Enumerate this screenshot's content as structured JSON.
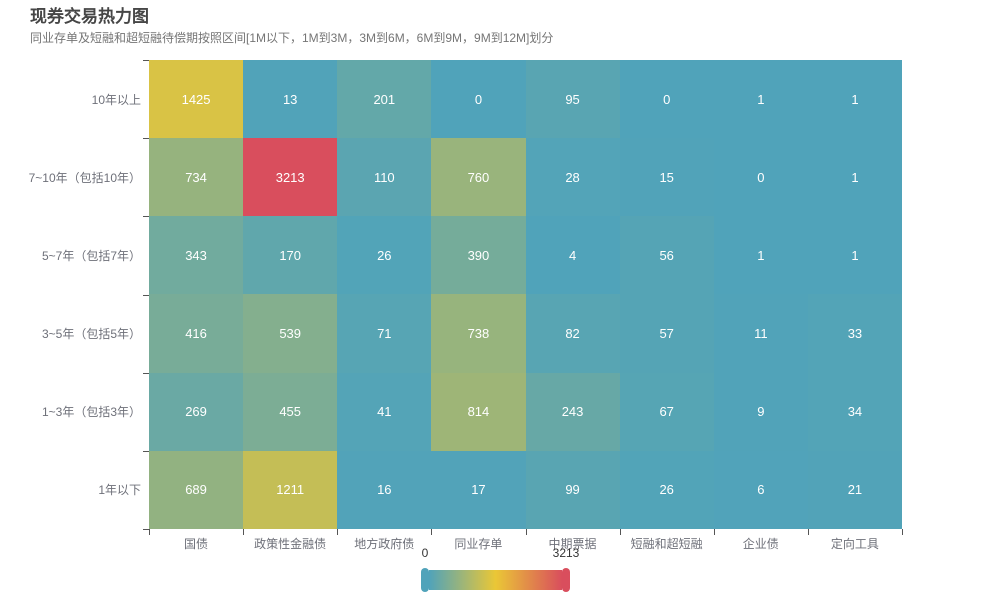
{
  "title": "现券交易热力图",
  "subtitle": "同业存单及短融和超短融待偿期按照区间[1M以下，1M到3M，3M到6M，6M到9M，9M到12M]划分",
  "chart_data": {
    "type": "heatmap",
    "x_categories": [
      "国债",
      "政策性金融债",
      "地方政府债",
      "同业存单",
      "中期票据",
      "短融和超短融",
      "企业债",
      "定向工具"
    ],
    "y_categories": [
      "10年以上",
      "7~10年（包括10年）",
      "5~7年（包括7年）",
      "3~5年（包括5年）",
      "1~3年（包括3年）",
      "1年以下"
    ],
    "rows": [
      [
        1425,
        13,
        201,
        0,
        95,
        0,
        1,
        1
      ],
      [
        734,
        3213,
        110,
        760,
        28,
        15,
        0,
        1
      ],
      [
        343,
        170,
        26,
        390,
        4,
        56,
        1,
        1
      ],
      [
        416,
        539,
        71,
        738,
        82,
        57,
        11,
        33
      ],
      [
        269,
        455,
        41,
        814,
        243,
        67,
        9,
        34
      ],
      [
        689,
        1211,
        16,
        17,
        99,
        26,
        6,
        21
      ]
    ],
    "visual_map": {
      "min": 0,
      "max": 3213,
      "min_label": "0",
      "max_label": "3213",
      "gradient": [
        "#50a3ba",
        "#eac736",
        "#d94e5d"
      ]
    },
    "layout": {
      "grid_on": false,
      "legend": "none",
      "visual_map_position": "bottom-center"
    }
  }
}
